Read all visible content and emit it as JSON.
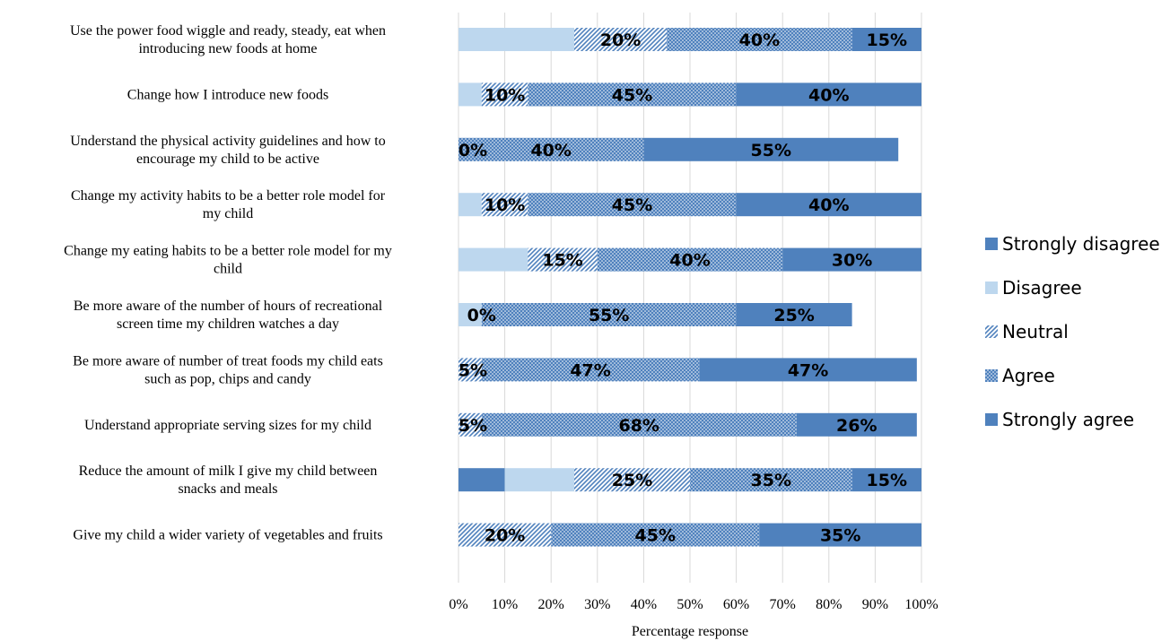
{
  "chart_data": {
    "type": "bar",
    "orientation": "horizontal",
    "stacked": "100%",
    "categories": [
      [
        "Use the power food wiggle and ready, steady, eat when",
        "introducing new foods at home"
      ],
      [
        "Change how I introduce new foods"
      ],
      [
        "Understand the physical activity guidelines and how to",
        "encourage my child to be active"
      ],
      [
        "Change my activity habits to be a better role model for",
        "my child"
      ],
      [
        "Change my eating habits to be a better role model for my",
        "child"
      ],
      [
        "Be more aware of the number of hours of recreational",
        "screen time my children watches a day"
      ],
      [
        "Be more aware of number of treat  foods my child eats",
        "such as pop, chips and candy"
      ],
      [
        "Understand appropriate serving sizes for my child"
      ],
      [
        "Reduce the amount of milk I give my child between",
        "snacks and meals"
      ],
      [
        "Give my child a wider variety of vegetables and fruits"
      ]
    ],
    "series": [
      {
        "name": "Strongly disagree",
        "color": "#4f81bd",
        "pattern": "solid",
        "values": [
          0,
          0,
          0,
          0,
          0,
          0,
          0,
          0,
          10,
          0
        ],
        "labels": [
          null,
          null,
          null,
          null,
          null,
          null,
          null,
          null,
          null,
          null
        ]
      },
      {
        "name": "Disagree",
        "color": "#bdd7ee",
        "pattern": "solid-light",
        "values": [
          25,
          5,
          0,
          5,
          15,
          5,
          0,
          0,
          15,
          0
        ],
        "labels": [
          null,
          null,
          null,
          null,
          null,
          null,
          null,
          null,
          null,
          null
        ]
      },
      {
        "name": "Neutral",
        "color": "#4f81bd",
        "pattern": "diagonal",
        "values": [
          20,
          10,
          0,
          10,
          15,
          0,
          5,
          5,
          25,
          20
        ],
        "labels": [
          "20%",
          "10%",
          "0%",
          "10%",
          "15%",
          "0%",
          "5%",
          "5%",
          "25%",
          "20%"
        ]
      },
      {
        "name": "Agree",
        "color": "#4f81bd",
        "pattern": "dotted",
        "values": [
          40,
          45,
          40,
          45,
          40,
          55,
          47,
          68,
          35,
          45
        ],
        "labels": [
          "40%",
          "45%",
          "40%",
          "45%",
          "40%",
          "55%",
          "47%",
          "68%",
          "35%",
          "45%"
        ]
      },
      {
        "name": "Strongly agree",
        "color": "#4f81bd",
        "pattern": "solid",
        "values": [
          15,
          40,
          55,
          40,
          30,
          25,
          47,
          26,
          15,
          35
        ],
        "labels": [
          "15%",
          "40%",
          "55%",
          "40%",
          "30%",
          "25%",
          "47%",
          "26%",
          "15%",
          "35%"
        ]
      }
    ],
    "xlim": [
      0,
      100
    ],
    "xticks": [
      "0%",
      "10%",
      "20%",
      "30%",
      "40%",
      "50%",
      "60%",
      "70%",
      "80%",
      "90%",
      "100%"
    ],
    "xlabel": "Percentage response",
    "ylabel": "",
    "title": "",
    "grid": true,
    "legend_position": "right"
  }
}
